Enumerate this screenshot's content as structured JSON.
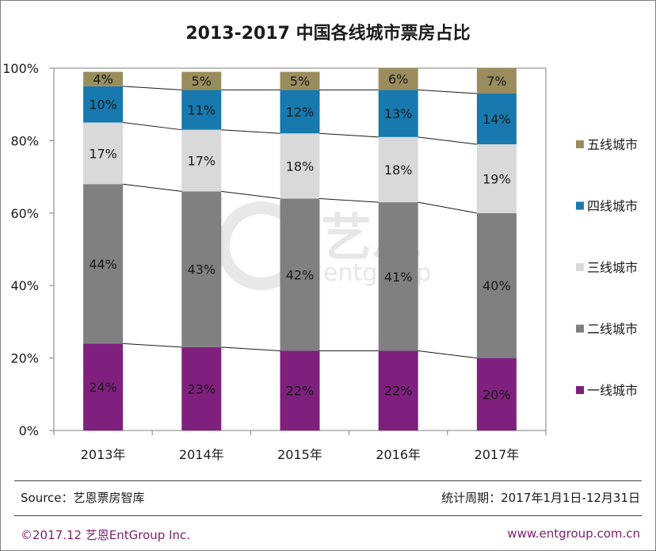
{
  "title": "2013-2017 中国各线城市票房占比",
  "source": "Source：艺恩票房智库",
  "period": "统计周期：2017年1月1日-12月31日",
  "copyright": "©2017.12  艺恩EntGroup Inc.",
  "website": "www.entgroup.com.cn",
  "watermark": "艺恩",
  "watermark_sub": "entgroup",
  "chart_data": {
    "type": "bar",
    "stacked": true,
    "title": "2013-2017 中国各线城市票房占比",
    "xlabel": "",
    "ylabel": "",
    "ylim": [
      0,
      100
    ],
    "y_ticks": [
      "0%",
      "20%",
      "40%",
      "60%",
      "80%",
      "100%"
    ],
    "categories": [
      "2013年",
      "2014年",
      "2015年",
      "2016年",
      "2017年"
    ],
    "series": [
      {
        "name": "一线城市",
        "color": "#7f1f7e",
        "values": [
          24,
          23,
          22,
          22,
          20
        ],
        "labels": [
          "24%",
          "23%",
          "22%",
          "22%",
          "20%"
        ]
      },
      {
        "name": "二线城市",
        "color": "#808080",
        "values": [
          44,
          43,
          42,
          41,
          40
        ],
        "labels": [
          "44%",
          "43%",
          "42%",
          "41%",
          "40%"
        ]
      },
      {
        "name": "三线城市",
        "color": "#d9d9d9",
        "values": [
          17,
          17,
          18,
          18,
          19
        ],
        "labels": [
          "17%",
          "17%",
          "18%",
          "18%",
          "19%"
        ]
      },
      {
        "name": "四线城市",
        "color": "#1779ae",
        "values": [
          10,
          11,
          12,
          13,
          14
        ],
        "labels": [
          "10%",
          "11%",
          "12%",
          "13%",
          "14%"
        ]
      },
      {
        "name": "五线城市",
        "color": "#998d5e",
        "values": [
          4,
          5,
          5,
          6,
          7
        ],
        "labels": [
          "4%",
          "5%",
          "5%",
          "6%",
          "7%"
        ]
      }
    ],
    "legend_position": "right"
  }
}
